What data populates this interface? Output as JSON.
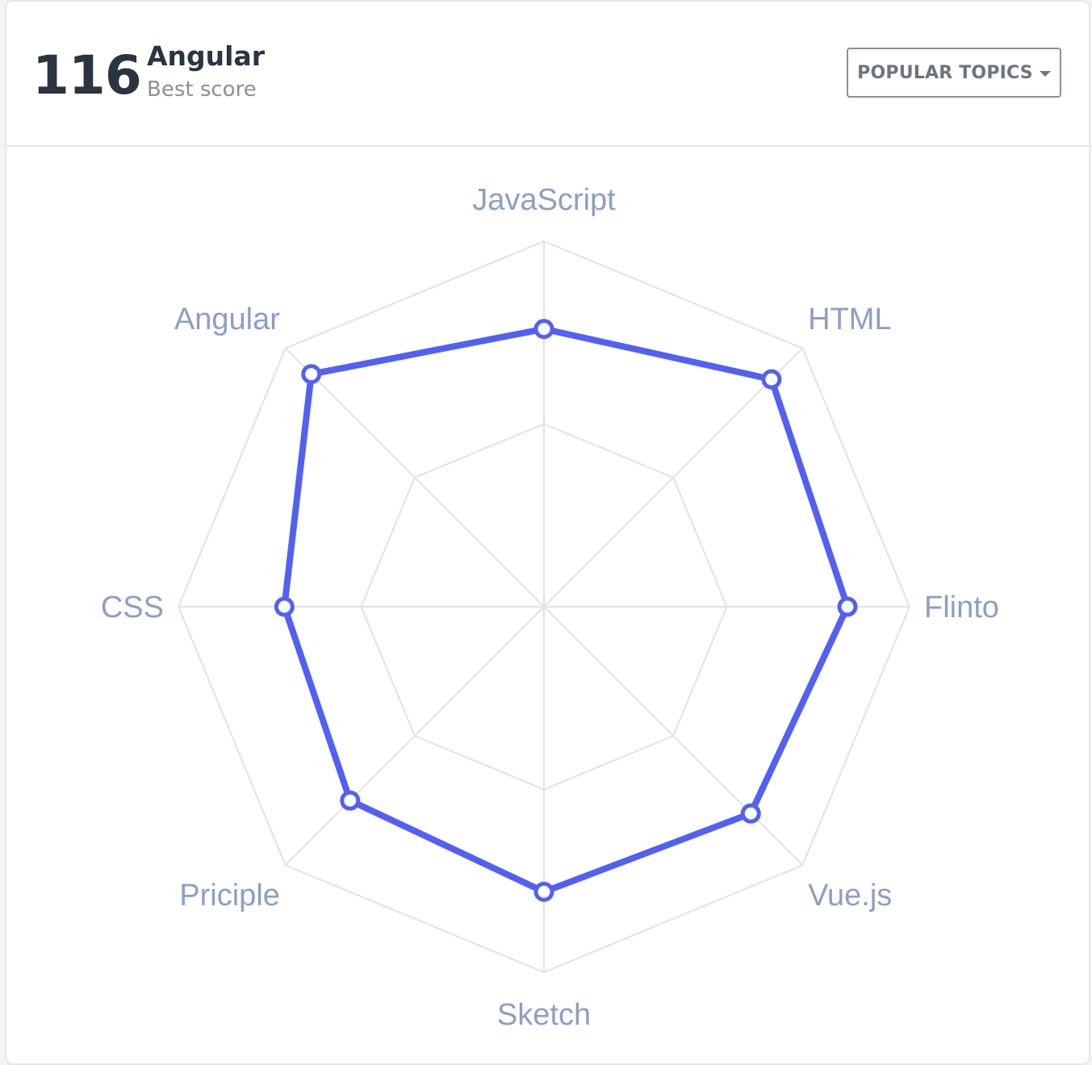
{
  "header": {
    "score": "116",
    "topic": "Angular",
    "subtitle": "Best score",
    "dropdown_label": "POPULAR TOPICS"
  },
  "icons": {
    "dropdown": "chevron-down-icon"
  },
  "colors": {
    "series": "#5360f4",
    "grid": "#e2e2e2",
    "axis_label": "#8c9fc4",
    "score_text": "#2b3441"
  },
  "chart_data": {
    "type": "radar",
    "categories": [
      "JavaScript",
      "HTML",
      "Flinto",
      "Vue.js",
      "Sketch",
      "Priciple",
      "CSS",
      "Angular"
    ],
    "series": [
      {
        "values": [
          76,
          88,
          83,
          80,
          78,
          75,
          71,
          90
        ]
      }
    ],
    "ylim": [
      0,
      100
    ],
    "grid_levels": 2,
    "legend": false
  }
}
